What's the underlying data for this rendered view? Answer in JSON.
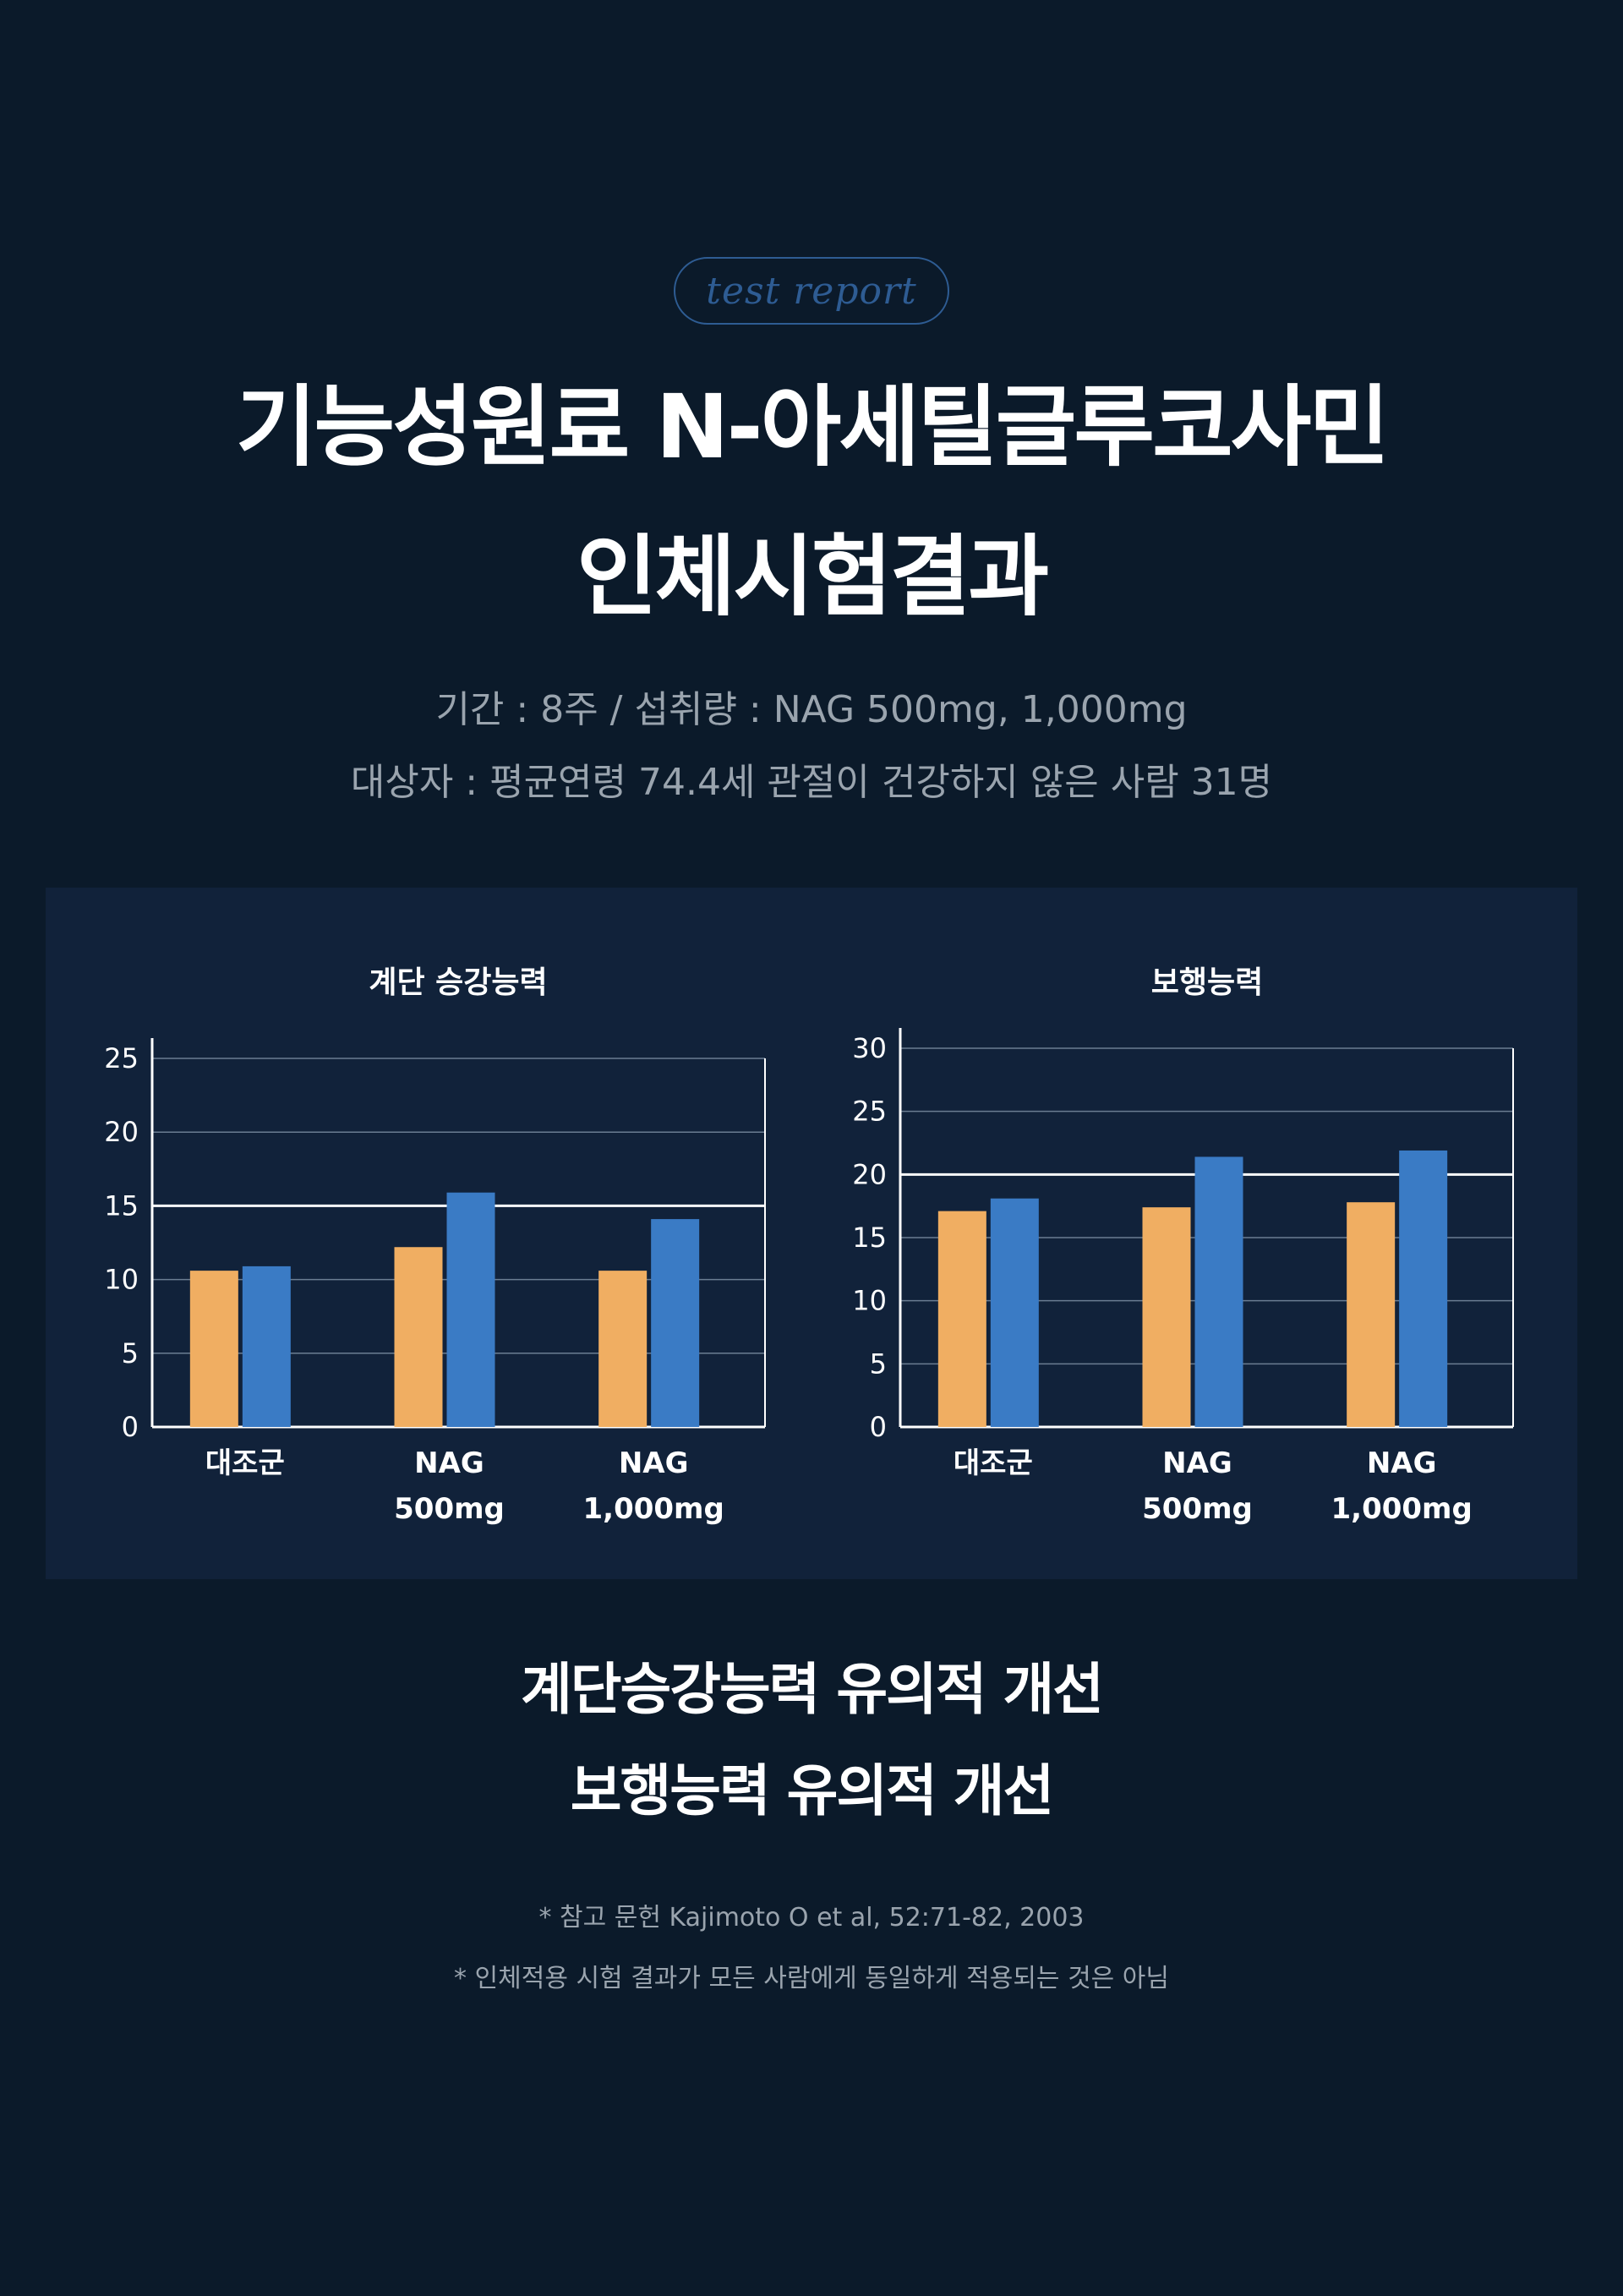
{
  "header": {
    "tag": "test report",
    "title_line1": "기능성원료 N-아세틸글루코사민",
    "title_line2": "인체시험결과",
    "info_line1": "기간 : 8주 / 섭취량 : NAG 500mg, 1,000mg",
    "info_line2": "대상자 : 평균연령 74.4세 관절이 건강하지 않은 사람 31명"
  },
  "colors": {
    "background": "#0b1a2a",
    "panel": "#11223a",
    "series_orange": "#f0ae62",
    "series_blue": "#3a7bc5"
  },
  "chart_data": [
    {
      "type": "bar",
      "title": "계단 승강능력",
      "categories": [
        [
          "대조군"
        ],
        [
          "NAG",
          "500mg"
        ],
        [
          "NAG",
          "1,000mg"
        ]
      ],
      "ylim": [
        0,
        25
      ],
      "yticks": [
        0,
        5,
        10,
        15,
        20,
        25
      ],
      "highlight_gridline": 15,
      "grid": true,
      "series": [
        {
          "values": [
            10.6,
            12.2,
            10.6
          ],
          "color": "#f0ae62"
        },
        {
          "values": [
            10.9,
            15.9,
            14.1
          ],
          "color": "#3a7bc5"
        }
      ]
    },
    {
      "type": "bar",
      "title": "보행능력",
      "categories": [
        [
          "대조군"
        ],
        [
          "NAG",
          "500mg"
        ],
        [
          "NAG",
          "1,000mg"
        ]
      ],
      "ylim": [
        0,
        30
      ],
      "yticks": [
        0,
        5,
        10,
        15,
        20,
        25,
        30
      ],
      "highlight_gridline": 20,
      "grid": true,
      "series": [
        {
          "values": [
            17.1,
            17.4,
            17.8
          ],
          "color": "#f0ae62"
        },
        {
          "values": [
            18.1,
            21.4,
            21.9
          ],
          "color": "#3a7bc5"
        }
      ]
    }
  ],
  "summary": {
    "line1": "계단승강능력 유의적 개선",
    "line2": "보행능력 유의적 개선"
  },
  "notes": {
    "reference": "* 참고 문헌 Kajimoto O et al, 52:71-82, 2003",
    "disclaimer": "* 인체적용 시험 결과가 모든 사람에게 동일하게 적용되는 것은 아님"
  }
}
